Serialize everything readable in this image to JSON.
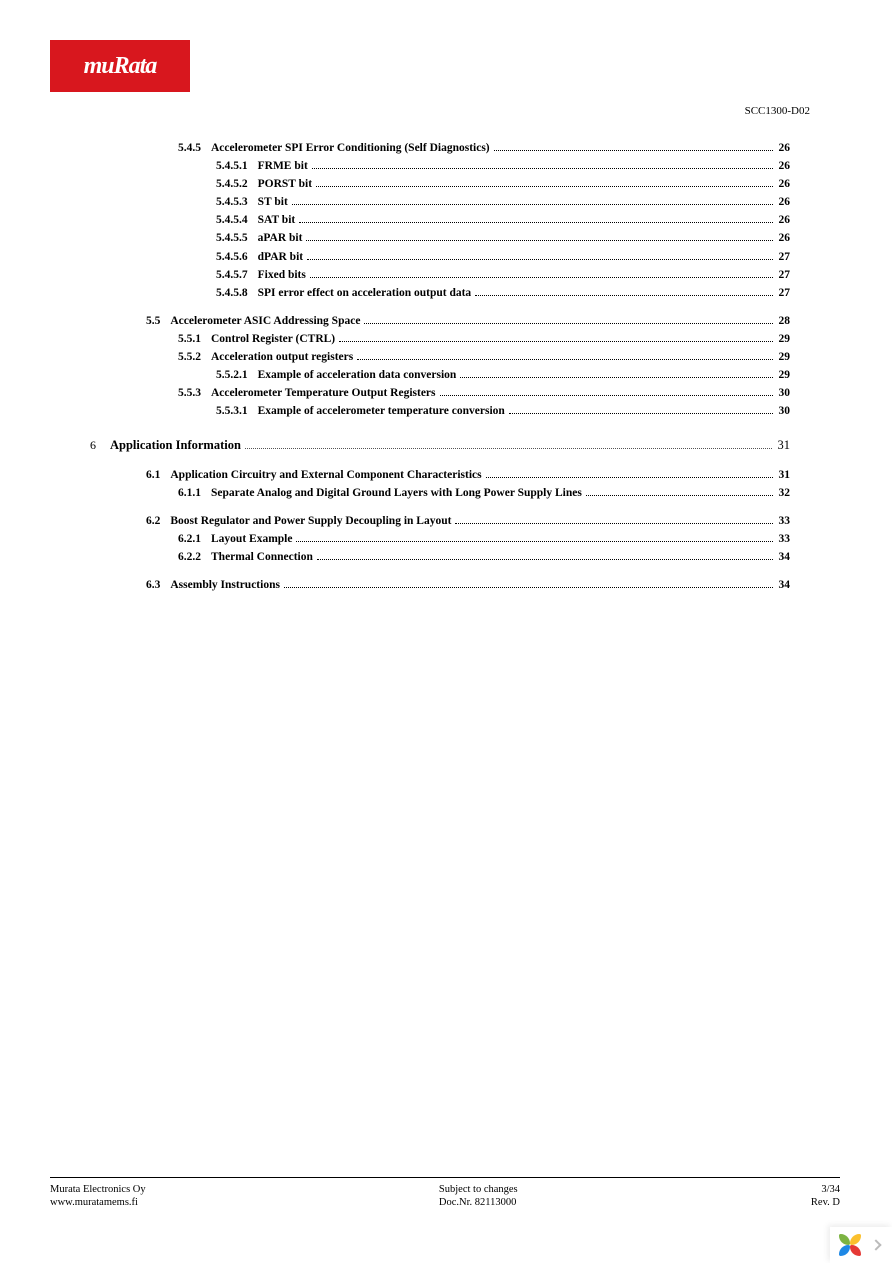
{
  "logo": {
    "text": "muRata",
    "bg_color": "#d8171e",
    "text_color": "#ffffff"
  },
  "doc_ref": "SCC1300-D02",
  "toc": [
    {
      "level": 2,
      "num": "5.4.5",
      "title": "Accelerometer SPI Error Conditioning (Self Diagnostics)",
      "page": "26"
    },
    {
      "level": 3,
      "num": "5.4.5.1",
      "title": "FRME bit",
      "page": "26"
    },
    {
      "level": 3,
      "num": "5.4.5.2",
      "title": "PORST bit",
      "page": "26"
    },
    {
      "level": 3,
      "num": "5.4.5.3",
      "title": "ST bit",
      "page": "26"
    },
    {
      "level": 3,
      "num": "5.4.5.4",
      "title": "SAT bit",
      "page": "26"
    },
    {
      "level": 3,
      "num": "5.4.5.5",
      "title": "aPAR bit",
      "page": "26"
    },
    {
      "level": 3,
      "num": "5.4.5.6",
      "title": "dPAR bit",
      "page": "27"
    },
    {
      "level": 3,
      "num": "5.4.5.7",
      "title": "Fixed bits",
      "page": "27"
    },
    {
      "level": 3,
      "num": "5.4.5.8",
      "title": "SPI error effect on acceleration output data",
      "page": "27"
    },
    {
      "level": 1,
      "num": "5.5",
      "title": "Accelerometer ASIC Addressing Space",
      "page": "28",
      "section": true
    },
    {
      "level": 2,
      "num": "5.5.1",
      "title": "Control Register (CTRL)",
      "page": "29"
    },
    {
      "level": 2,
      "num": "5.5.2",
      "title": "Acceleration output registers",
      "page": "29"
    },
    {
      "level": 3,
      "num": "5.5.2.1",
      "title": "Example of acceleration data conversion",
      "page": "29"
    },
    {
      "level": 2,
      "num": "5.5.3",
      "title": "Accelerometer Temperature Output Registers",
      "page": "30"
    },
    {
      "level": 3,
      "num": "5.5.3.1",
      "title": "Example of accelerometer temperature conversion",
      "page": "30"
    },
    {
      "level": 0,
      "num": "6",
      "title": "Application Information",
      "page": "31",
      "chapter": true
    },
    {
      "level": 1,
      "num": "6.1",
      "title": "Application Circuitry and External Component Characteristics",
      "page": "31",
      "section": true
    },
    {
      "level": 2,
      "num": "6.1.1",
      "title": "Separate Analog and Digital Ground Layers with Long Power Supply Lines",
      "page": "32"
    },
    {
      "level": 1,
      "num": "6.2",
      "title": "Boost Regulator and Power Supply Decoupling in Layout",
      "page": "33",
      "section": true
    },
    {
      "level": 2,
      "num": "6.2.1",
      "title": "Layout Example",
      "page": "33"
    },
    {
      "level": 2,
      "num": "6.2.2",
      "title": "Thermal Connection",
      "page": "34"
    },
    {
      "level": 1,
      "num": "6.3",
      "title": "Assembly Instructions",
      "page": "34",
      "section": true
    }
  ],
  "footer": {
    "left": [
      "Murata Electronics Oy",
      "www.muratamems.fi"
    ],
    "center": [
      "Subject to changes",
      "Doc.Nr. 82113000"
    ],
    "right": [
      "3/34",
      "Rev. D"
    ]
  },
  "style": {
    "page_bg": "#ffffff",
    "text_color": "#000000",
    "font_family": "Times New Roman",
    "base_fontsize_pt": 9,
    "chapter_fontsize_pt": 10,
    "leader_style": "dotted",
    "footer_rule_color": "#000000"
  }
}
